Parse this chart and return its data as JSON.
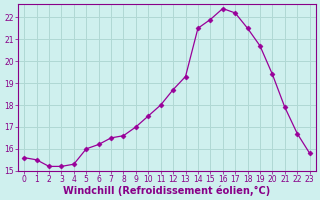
{
  "x": [
    0,
    1,
    2,
    3,
    4,
    5,
    6,
    7,
    8,
    9,
    10,
    11,
    12,
    13,
    14,
    15,
    16,
    17,
    18,
    19,
    20,
    21,
    22,
    23
  ],
  "y": [
    15.6,
    15.5,
    15.2,
    15.2,
    15.3,
    16.0,
    16.2,
    16.5,
    16.6,
    17.0,
    17.5,
    18.0,
    18.7,
    19.3,
    21.5,
    21.9,
    22.4,
    22.2,
    21.5,
    20.7,
    19.4,
    17.9,
    16.7,
    15.8
  ],
  "line_color": "#990099",
  "marker": "D",
  "marker_size": 2.5,
  "bg_color": "#cff0ee",
  "grid_color": "#b0d8d4",
  "xlabel": "Windchill (Refroidissement éolien,°C)",
  "ylim": [
    15,
    22.6
  ],
  "xlim": [
    -0.5,
    23.5
  ],
  "yticks": [
    15,
    16,
    17,
    18,
    19,
    20,
    21,
    22
  ],
  "xticks": [
    0,
    1,
    2,
    3,
    4,
    5,
    6,
    7,
    8,
    9,
    10,
    11,
    12,
    13,
    14,
    15,
    16,
    17,
    18,
    19,
    20,
    21,
    22,
    23
  ],
  "tick_color": "#880088",
  "tick_fontsize": 5.5,
  "xlabel_fontsize": 7.0
}
